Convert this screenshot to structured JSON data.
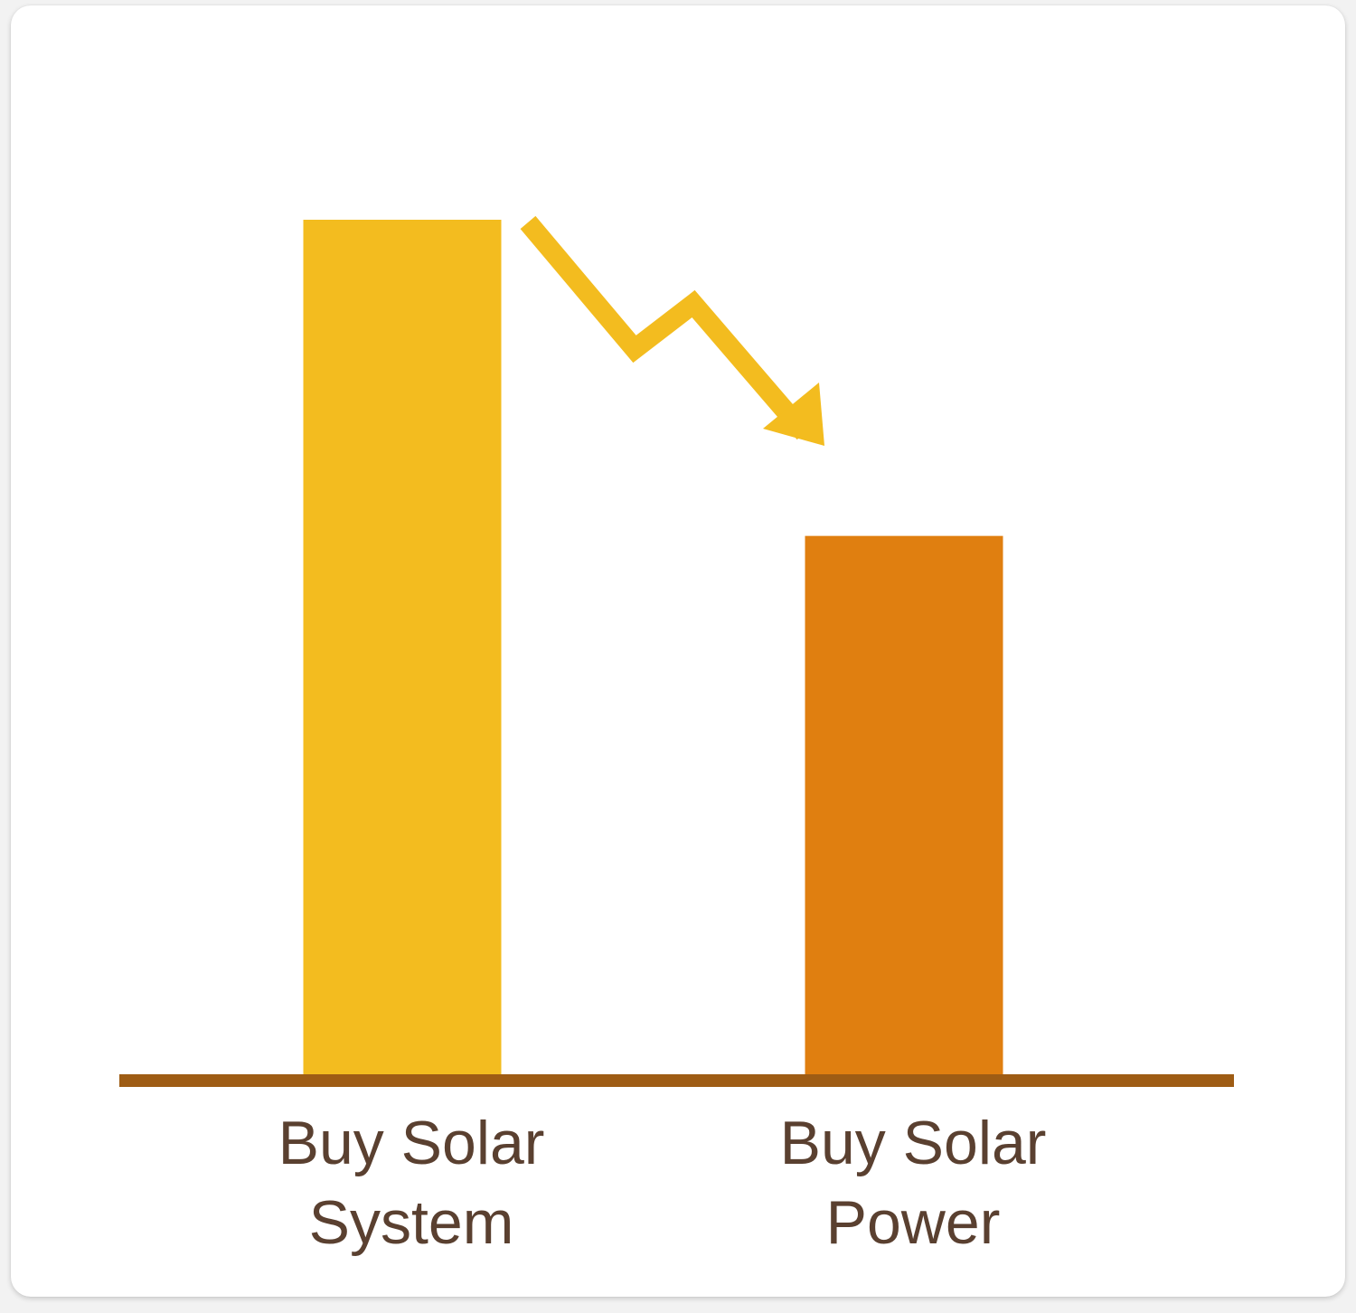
{
  "chart_data": {
    "type": "bar",
    "categories": [
      "Buy Solar System",
      "Buy Solar Power"
    ],
    "category_lines": [
      [
        "Buy Solar",
        "System"
      ],
      [
        "Buy Solar",
        "Power"
      ]
    ],
    "values": [
      100,
      63
    ],
    "ylim": [
      0,
      100
    ],
    "bar_colors": [
      "#f3bc1f",
      "#e07f10"
    ],
    "axis_color": "#9e5c14",
    "label_color": "#5a4030",
    "arrow_color": "#f3bc1f",
    "arrow_icon": "zigzag-down-arrow-icon",
    "title": "",
    "xlabel": "",
    "ylabel": ""
  }
}
